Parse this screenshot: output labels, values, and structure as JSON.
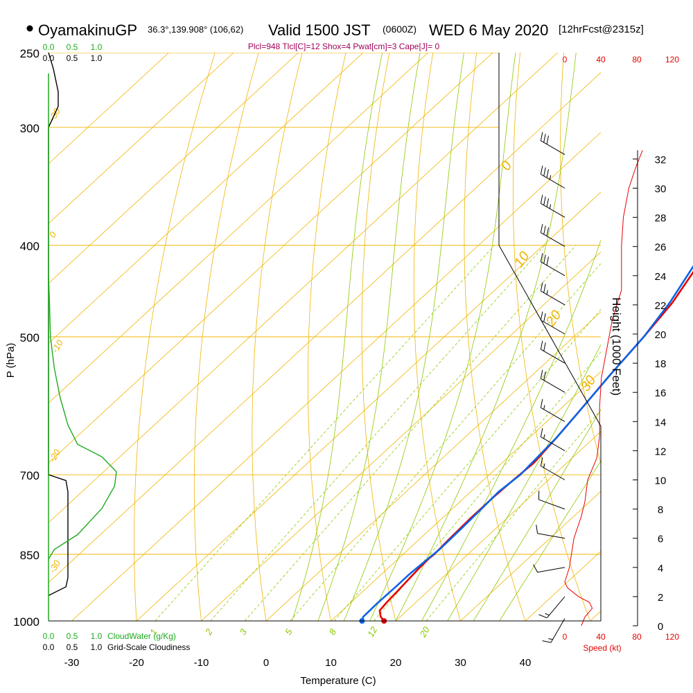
{
  "header": {
    "station": "OyamakinuGP",
    "coords": "36.3°,139.908° (106,62)",
    "valid_main": "Valid 1500 JST",
    "valid_utc": "(0600Z)",
    "date": "WED 6 May 2020",
    "forecast": "[12hrFcst@2315z]",
    "indices": "Plcl=948 Tlcl[C]=12 Shox=4 Pwat[cm]=3 Cape[J]= 0"
  },
  "labels": {
    "ylabel": "P (hPa)",
    "xlabel": "Temperature (C)",
    "height_label": "Height (1000 Feet)",
    "speed_label": "Speed (kt)",
    "cloudwater_label": "CloudWater (g/Kg)",
    "cloudiness_label": "Grid-Scale Cloudiness"
  },
  "colors": {
    "isobar": "#f0b400",
    "dry_adiabat": "#f0b400",
    "moist_adiabat": "#8cc800",
    "mixing_ratio": "#8cc800",
    "temperature": "#e60000",
    "dewpoint": "#0a64e6",
    "cloudwater": "#1eaa1e",
    "cloudiness": "#000000",
    "speed": "#e60000",
    "indices": "#a0005a"
  },
  "chart_data": {
    "type": "line",
    "title": "OyamakinuGP Valid 1500 JST (0600Z) WED 6 May 2020 [12hrFcst@2315z]",
    "xlabel": "Temperature (C)",
    "ylabel": "P (hPa)",
    "xlim": [
      -35,
      45
    ],
    "ylim": [
      1000,
      250
    ],
    "x_ticks": [
      "-30",
      "-20",
      "-10",
      "0",
      "10",
      "20",
      "30",
      "40"
    ],
    "pressure_ticks": [
      "250",
      "300",
      "400",
      "500",
      "700",
      "850",
      "1000"
    ],
    "height_ticks": [
      "0",
      "2",
      "4",
      "6",
      "8",
      "10",
      "12",
      "14",
      "16",
      "18",
      "20",
      "22",
      "24",
      "26",
      "28",
      "30",
      "32"
    ],
    "speed_ticks": [
      "0",
      "40",
      "80",
      "120"
    ],
    "cloud_ticks": [
      "0.0",
      "0.5",
      "1.0"
    ],
    "dry_adiabat_labels": [
      "0",
      "10",
      "20",
      "30"
    ],
    "side_labels": [
      "0",
      "10",
      "20",
      "-10",
      "-20",
      "-30"
    ],
    "mixing_ratio_labels": [
      "1",
      "2",
      "3",
      "5",
      "8",
      "12",
      "20"
    ],
    "series": [
      {
        "name": "Temperature",
        "points": [
          [
            18.2,
            1000
          ],
          [
            17.0,
            990
          ],
          [
            15.8,
            975
          ],
          [
            15.5,
            955
          ],
          [
            15.3,
            930
          ],
          [
            15.0,
            900
          ],
          [
            14.8,
            880
          ],
          [
            14.7,
            860
          ],
          [
            14.8,
            850
          ],
          [
            14.6,
            820
          ],
          [
            14.4,
            780
          ],
          [
            14.4,
            740
          ],
          [
            14.6,
            710
          ],
          [
            14.9,
            680
          ],
          [
            14.2,
            640
          ],
          [
            13.3,
            600
          ],
          [
            12.0,
            550
          ],
          [
            10.8,
            500
          ],
          [
            9.5,
            460
          ],
          [
            7.2,
            420
          ],
          [
            4.6,
            380
          ],
          [
            2.0,
            340
          ],
          [
            0.4,
            310
          ],
          [
            -1.3,
            280
          ],
          [
            -3.1,
            258
          ]
        ]
      },
      {
        "name": "Dewpoint",
        "points": [
          [
            14.8,
            1000
          ],
          [
            14.3,
            990
          ],
          [
            14.2,
            960
          ],
          [
            14.3,
            920
          ],
          [
            14.3,
            890
          ],
          [
            14.6,
            860
          ],
          [
            14.8,
            840
          ],
          [
            14.7,
            800
          ],
          [
            14.5,
            760
          ],
          [
            14.3,
            730
          ],
          [
            14.8,
            700
          ],
          [
            14.6,
            680
          ],
          [
            14.2,
            640
          ],
          [
            13.3,
            600
          ],
          [
            12.0,
            550
          ],
          [
            10.8,
            500
          ],
          [
            9.1,
            460
          ],
          [
            6.6,
            420
          ],
          [
            3.6,
            390
          ],
          [
            -0.4,
            360
          ],
          [
            -3.8,
            330
          ],
          [
            -5.5,
            300
          ],
          [
            -7.4,
            270
          ],
          [
            -8.6,
            258
          ]
        ]
      }
    ],
    "cloudiness": [
      [
        0.0,
        250
      ],
      [
        0.05,
        260
      ],
      [
        0.1,
        275
      ],
      [
        0.1,
        285
      ],
      [
        0.0,
        300
      ],
      [
        0.0,
        700
      ],
      [
        0.18,
        710
      ],
      [
        0.2,
        730
      ],
      [
        0.2,
        900
      ],
      [
        0.18,
        920
      ],
      [
        0.0,
        940
      ]
    ],
    "cloudwater": [
      [
        0.0,
        430
      ],
      [
        0.01,
        460
      ],
      [
        0.02,
        500
      ],
      [
        0.06,
        540
      ],
      [
        0.12,
        580
      ],
      [
        0.2,
        620
      ],
      [
        0.3,
        650
      ],
      [
        0.55,
        670
      ],
      [
        0.7,
        695
      ],
      [
        0.68,
        720
      ],
      [
        0.55,
        760
      ],
      [
        0.3,
        810
      ],
      [
        0.06,
        840
      ],
      [
        0.0,
        860
      ]
    ],
    "wind_barbs": [
      {
        "height_kft": 32.3,
        "speed": 30,
        "dir": 300
      },
      {
        "height_kft": 30.0,
        "speed": 35,
        "dir": 300
      },
      {
        "height_kft": 28.0,
        "speed": 35,
        "dir": 300
      },
      {
        "height_kft": 26.0,
        "speed": 30,
        "dir": 300
      },
      {
        "height_kft": 24.0,
        "speed": 30,
        "dir": 300
      },
      {
        "height_kft": 22.0,
        "speed": 25,
        "dir": 300
      },
      {
        "height_kft": 20.0,
        "speed": 20,
        "dir": 300
      },
      {
        "height_kft": 18.0,
        "speed": 20,
        "dir": 300
      },
      {
        "height_kft": 16.0,
        "speed": 20,
        "dir": 300
      },
      {
        "height_kft": 14.0,
        "speed": 15,
        "dir": 300
      },
      {
        "height_kft": 12.0,
        "speed": 15,
        "dir": 300
      },
      {
        "height_kft": 10.0,
        "speed": 15,
        "dir": 300
      },
      {
        "height_kft": 8.0,
        "speed": 10,
        "dir": 290
      },
      {
        "height_kft": 6.0,
        "speed": 10,
        "dir": 280
      },
      {
        "height_kft": 4.0,
        "speed": 10,
        "dir": 260
      },
      {
        "height_kft": 2.0,
        "speed": 15,
        "dir": 220
      },
      {
        "height_kft": 0.5,
        "speed": 15,
        "dir": 210
      }
    ],
    "speed_profile": [
      [
        18,
        0.0
      ],
      [
        22,
        0.6
      ],
      [
        30,
        1.2
      ],
      [
        27,
        1.6
      ],
      [
        15,
        2.0
      ],
      [
        3,
        2.6
      ],
      [
        0,
        3.0
      ],
      [
        5,
        4.0
      ],
      [
        10,
        6.0
      ],
      [
        18,
        7.5
      ],
      [
        22,
        8.5
      ],
      [
        25,
        10.0
      ],
      [
        35,
        11.5
      ],
      [
        38,
        13.0
      ],
      [
        38,
        15.0
      ],
      [
        40,
        17.0
      ],
      [
        46,
        19.0
      ],
      [
        52,
        21.0
      ],
      [
        62,
        23.0
      ],
      [
        62,
        26.0
      ],
      [
        64,
        28.0
      ],
      [
        70,
        30.0
      ],
      [
        78,
        31.5
      ],
      [
        85,
        32.6
      ]
    ]
  }
}
